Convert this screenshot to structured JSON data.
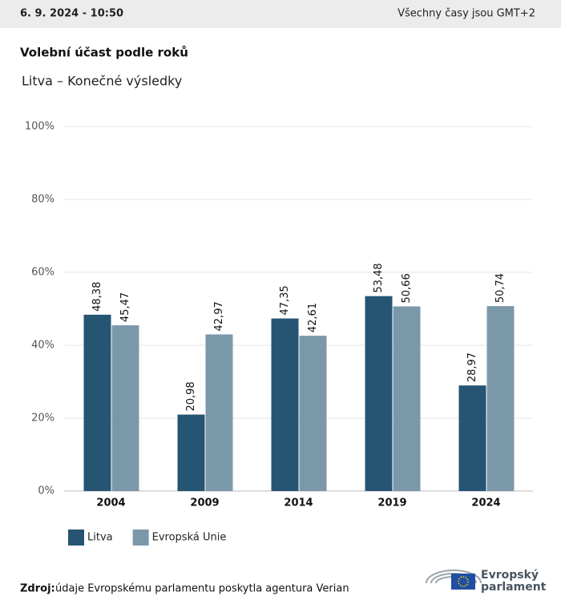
{
  "header": {
    "date": "6. 9. 2024 - 10:50",
    "timezone": "Všechny časy jsou GMT+2"
  },
  "chart_data": {
    "type": "bar",
    "title": "Volební účast podle roků",
    "subtitle": "Litva – Konečné výsledky",
    "categories": [
      "2004",
      "2009",
      "2014",
      "2019",
      "2024"
    ],
    "series": [
      {
        "name": "Litva",
        "color": "#265573",
        "values": [
          48.38,
          20.98,
          47.35,
          53.48,
          28.97
        ],
        "value_labels": [
          "48,38",
          "20,98",
          "47,35",
          "53,48",
          "28,97"
        ]
      },
      {
        "name": "Evropská Unie",
        "color": "#7b98ab",
        "values": [
          45.47,
          42.97,
          42.61,
          50.66,
          50.74
        ],
        "value_labels": [
          "45,47",
          "42,97",
          "42,61",
          "50,66",
          "50,74"
        ]
      }
    ],
    "ylim": [
      0,
      100
    ],
    "yticks": [
      {
        "value": 0,
        "label": "0%"
      },
      {
        "value": 20,
        "label": "20%"
      },
      {
        "value": 40,
        "label": "40%"
      },
      {
        "value": 60,
        "label": "60%"
      },
      {
        "value": 80,
        "label": "80%"
      },
      {
        "value": 100,
        "label": "100%"
      }
    ],
    "grid": true,
    "legend": "bottom-left"
  },
  "source": {
    "label": "Zdroj:",
    "text": "údaje Evropskému parlamentu poskytla agentura Verian"
  },
  "logo": {
    "line1": "Evropský",
    "line2": "parlament"
  }
}
